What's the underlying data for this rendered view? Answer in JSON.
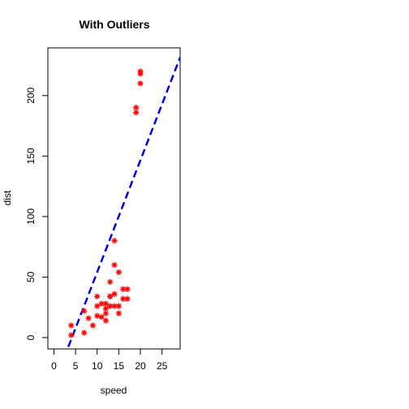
{
  "chart_data": {
    "type": "scatter",
    "title": "With Outliers",
    "xlabel": "speed",
    "ylabel": "dist",
    "xlim": [
      -1.4,
      29.2
    ],
    "ylim": [
      -9.4,
      239.4
    ],
    "xticks": [
      0,
      5,
      10,
      15,
      20,
      25
    ],
    "yticks": [
      0,
      50,
      100,
      150,
      200
    ],
    "point_marker": "asterisk",
    "point_color": "#ff0000",
    "line_color": "#0000dd",
    "line_style": "dashed",
    "grid": false,
    "legend": "none",
    "fit_line": {
      "intercept": -38.5,
      "slope": 9.25
    },
    "points": [
      {
        "x": 4,
        "y": 2
      },
      {
        "x": 4,
        "y": 10
      },
      {
        "x": 7,
        "y": 4
      },
      {
        "x": 7,
        "y": 22
      },
      {
        "x": 8,
        "y": 16
      },
      {
        "x": 9,
        "y": 10
      },
      {
        "x": 10,
        "y": 18
      },
      {
        "x": 10,
        "y": 26
      },
      {
        "x": 10,
        "y": 34
      },
      {
        "x": 11,
        "y": 17
      },
      {
        "x": 11,
        "y": 28
      },
      {
        "x": 12,
        "y": 14
      },
      {
        "x": 12,
        "y": 20
      },
      {
        "x": 12,
        "y": 24
      },
      {
        "x": 12,
        "y": 28
      },
      {
        "x": 13,
        "y": 26
      },
      {
        "x": 13,
        "y": 34
      },
      {
        "x": 13,
        "y": 34
      },
      {
        "x": 13,
        "y": 46
      },
      {
        "x": 14,
        "y": 26
      },
      {
        "x": 14,
        "y": 36
      },
      {
        "x": 14,
        "y": 60
      },
      {
        "x": 14,
        "y": 80
      },
      {
        "x": 15,
        "y": 20
      },
      {
        "x": 15,
        "y": 26
      },
      {
        "x": 15,
        "y": 54
      },
      {
        "x": 16,
        "y": 32
      },
      {
        "x": 16,
        "y": 40
      },
      {
        "x": 17,
        "y": 32
      },
      {
        "x": 17,
        "y": 40
      },
      {
        "x": 19,
        "y": 186
      },
      {
        "x": 19,
        "y": 190
      },
      {
        "x": 20,
        "y": 210
      },
      {
        "x": 20,
        "y": 218
      },
      {
        "x": 20,
        "y": 220
      }
    ]
  }
}
